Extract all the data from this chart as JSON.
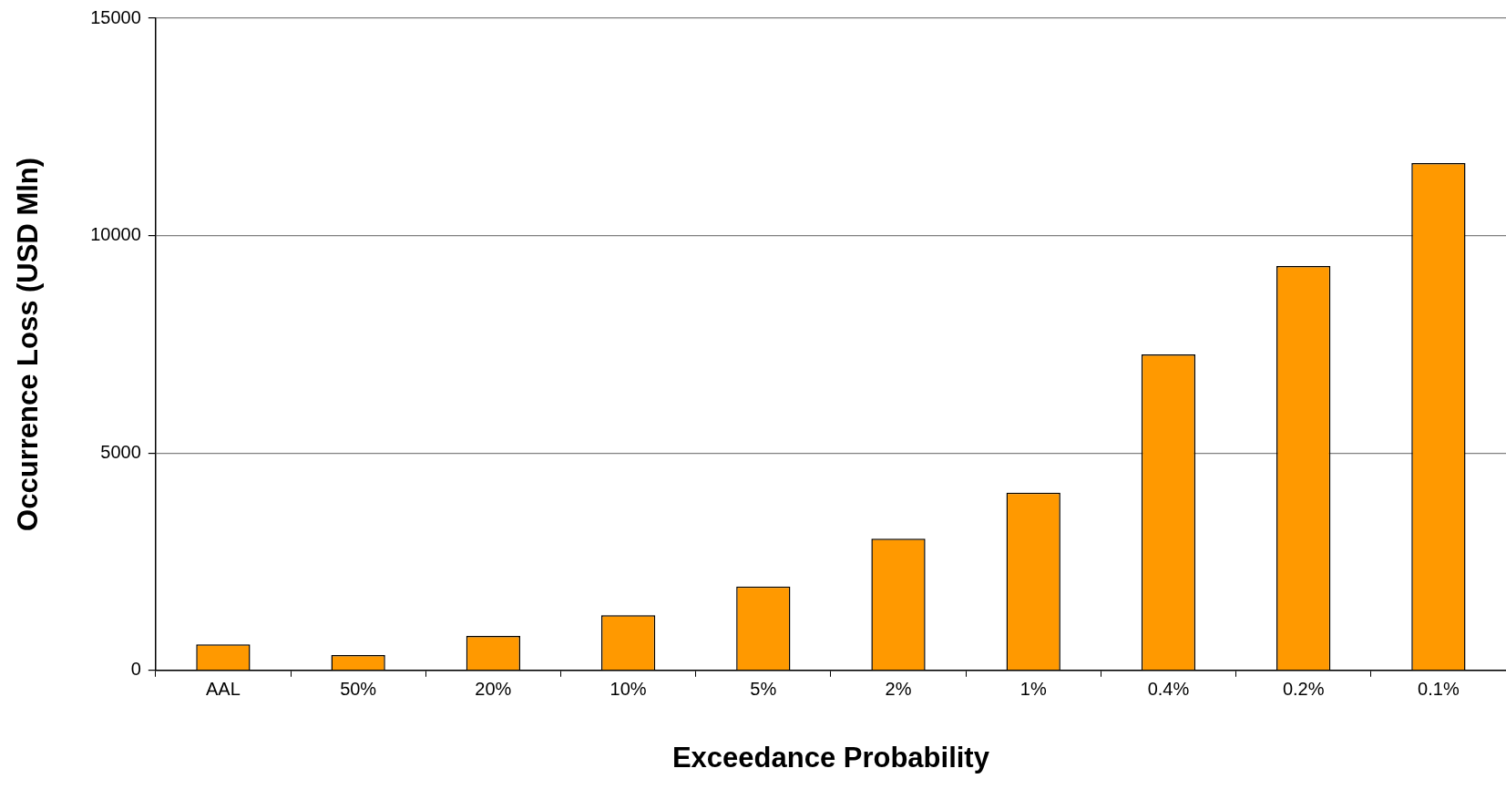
{
  "chart_data": {
    "type": "bar",
    "xlabel": "Exceedance Probability",
    "ylabel": "Occurrence Loss (USD Mln)",
    "categories": [
      "AAL",
      "50%",
      "20%",
      "10%",
      "5%",
      "2%",
      "1%",
      "0.4%",
      "0.2%",
      "0.1%"
    ],
    "values": [
      600,
      350,
      790,
      1270,
      1930,
      3030,
      4090,
      7270,
      9300,
      11670
    ],
    "color": "#ff9900",
    "ylim": [
      0,
      15000
    ],
    "yticks": [
      0,
      5000,
      10000,
      15000
    ],
    "grid": "y",
    "legend": false
  }
}
